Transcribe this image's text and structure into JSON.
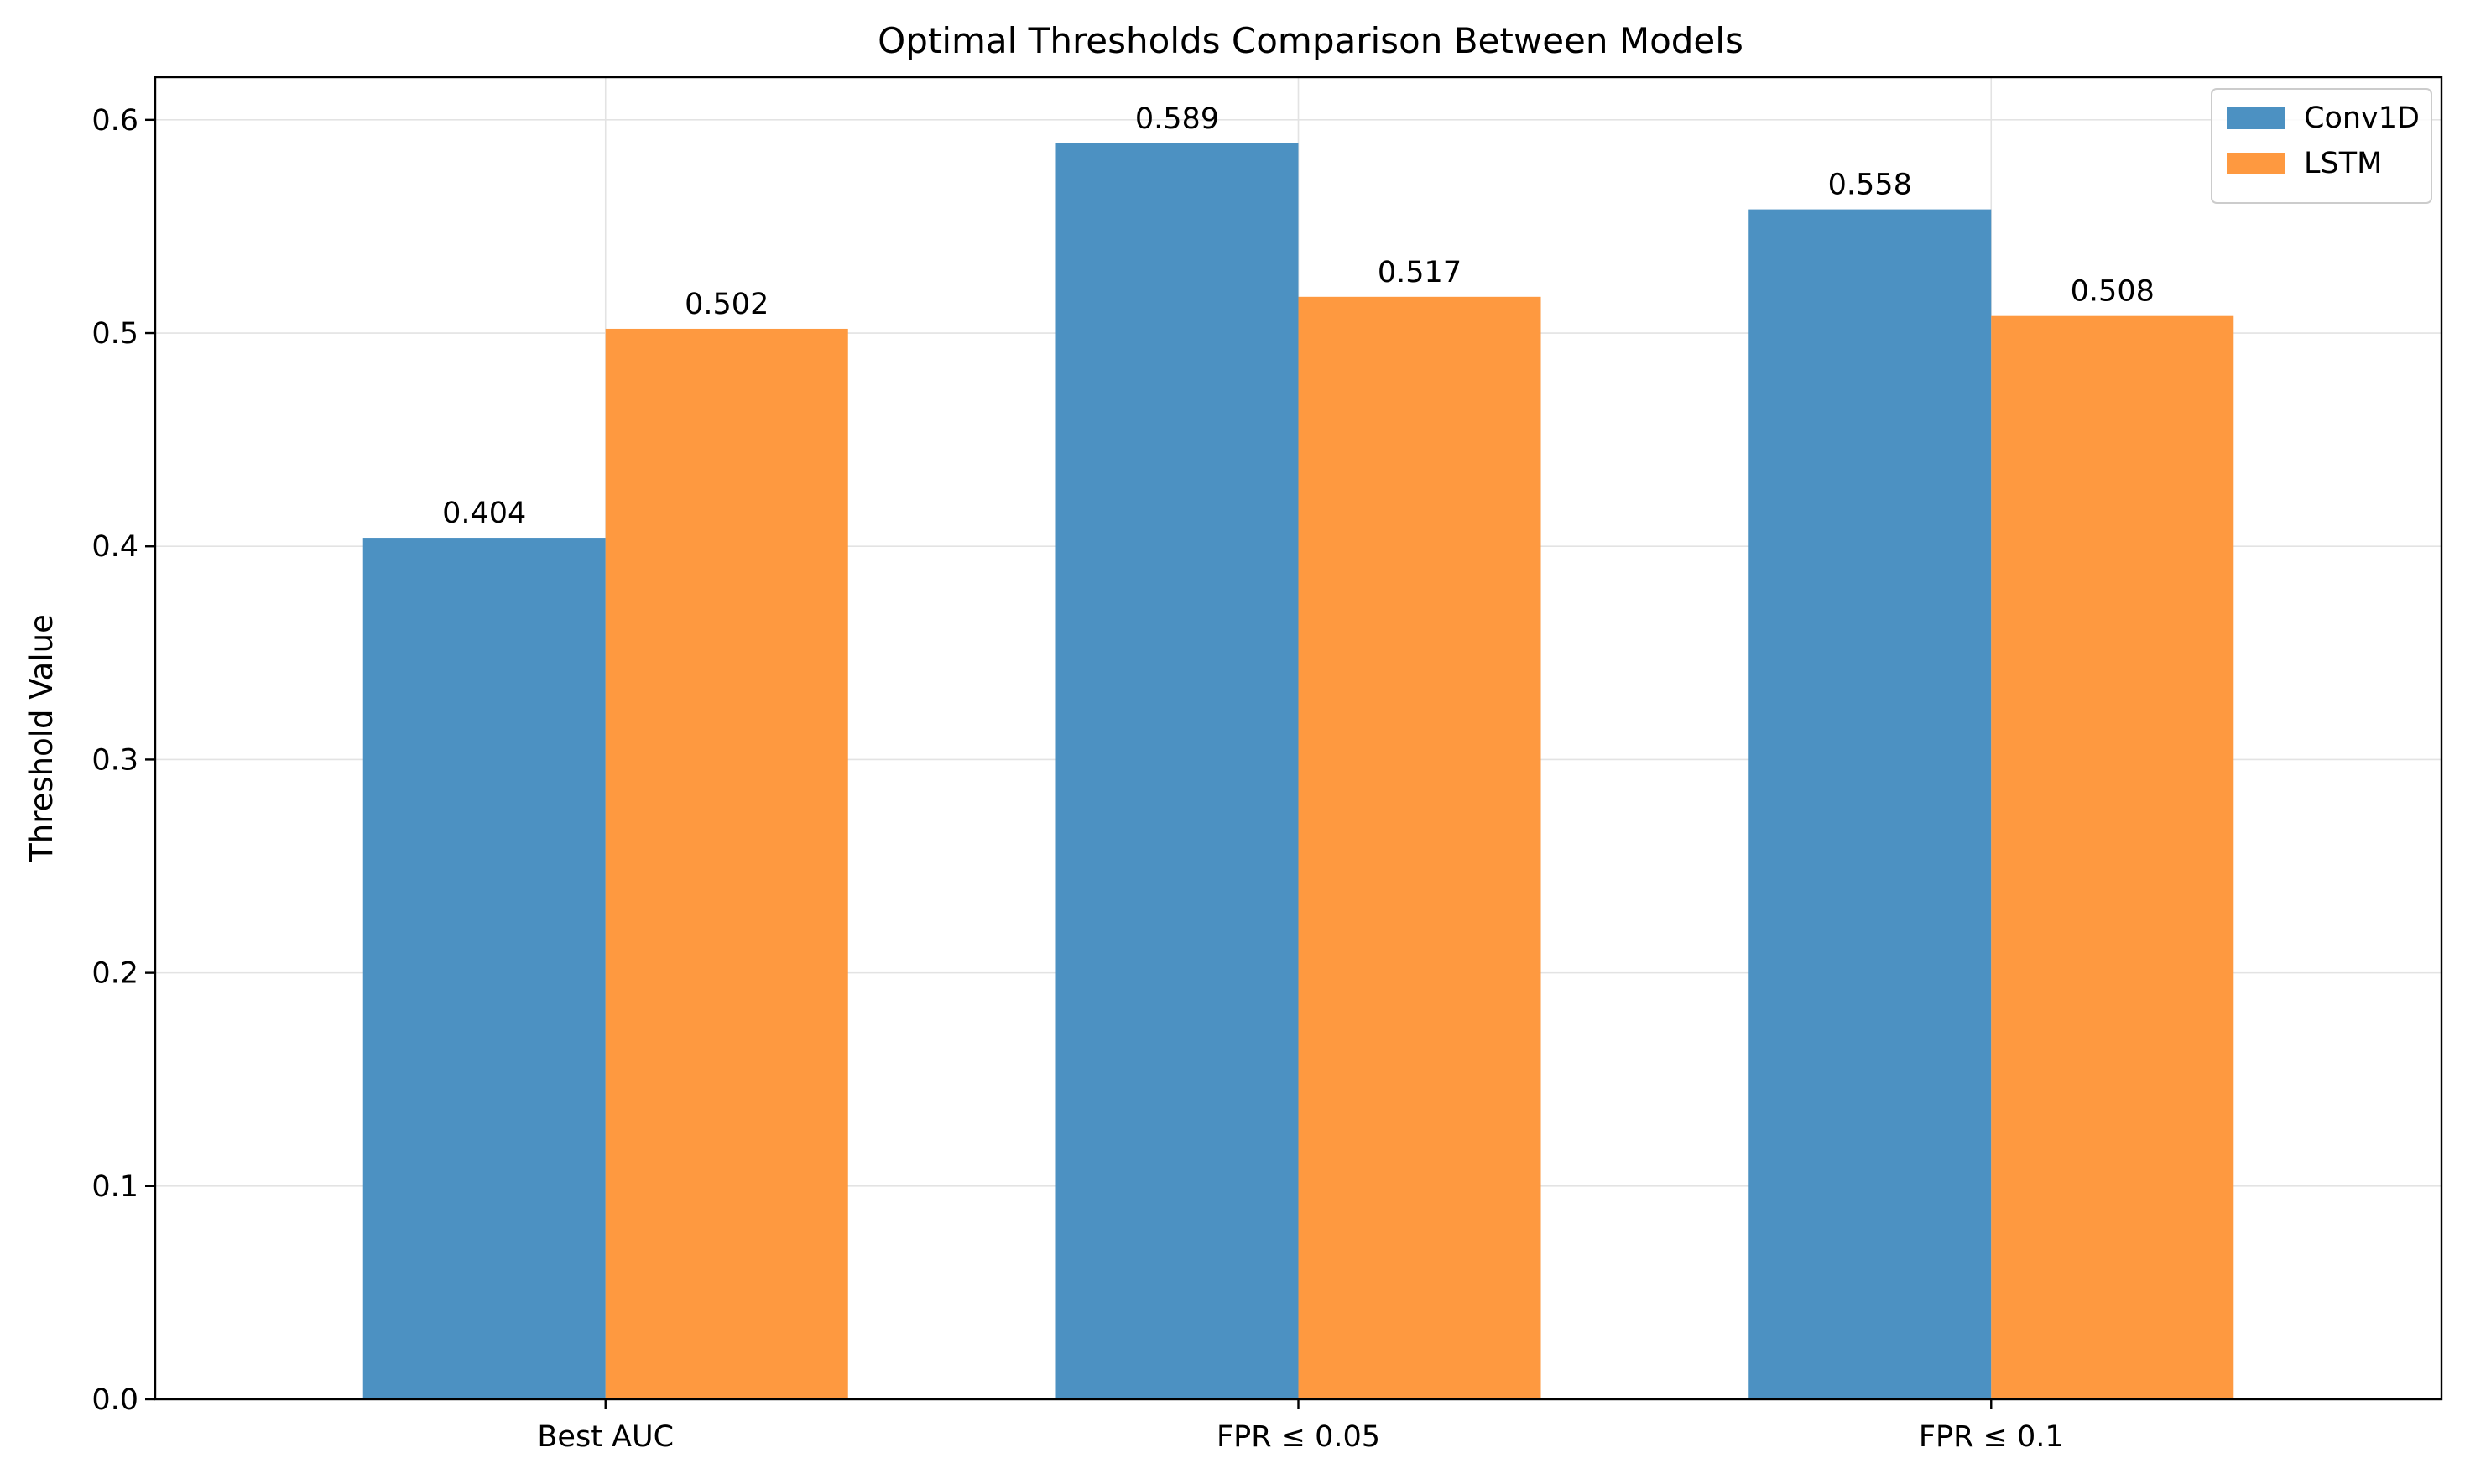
{
  "chart_data": {
    "type": "bar",
    "title": "Optimal Thresholds Comparison Between Models",
    "xlabel": "",
    "ylabel": "Threshold Value",
    "categories": [
      "Best AUC",
      "FPR ≤ 0.05",
      "FPR ≤ 0.1"
    ],
    "series": [
      {
        "name": "Conv1D",
        "values": [
          0.404,
          0.589,
          0.558
        ],
        "labels": [
          "0.404",
          "0.589",
          "0.558"
        ],
        "color": "#4c91c2"
      },
      {
        "name": "LSTM",
        "values": [
          0.502,
          0.517,
          0.508
        ],
        "labels": [
          "0.502",
          "0.517",
          "0.508"
        ],
        "color": "#fe9940"
      }
    ],
    "ylim": [
      0,
      0.62
    ],
    "yticks": [
      0.0,
      0.1,
      0.2,
      0.3,
      0.4,
      0.5,
      0.6
    ],
    "ytick_labels": [
      "0.0",
      "0.1",
      "0.2",
      "0.3",
      "0.4",
      "0.5",
      "0.6"
    ],
    "grid": true,
    "legend_position": "top-right"
  }
}
